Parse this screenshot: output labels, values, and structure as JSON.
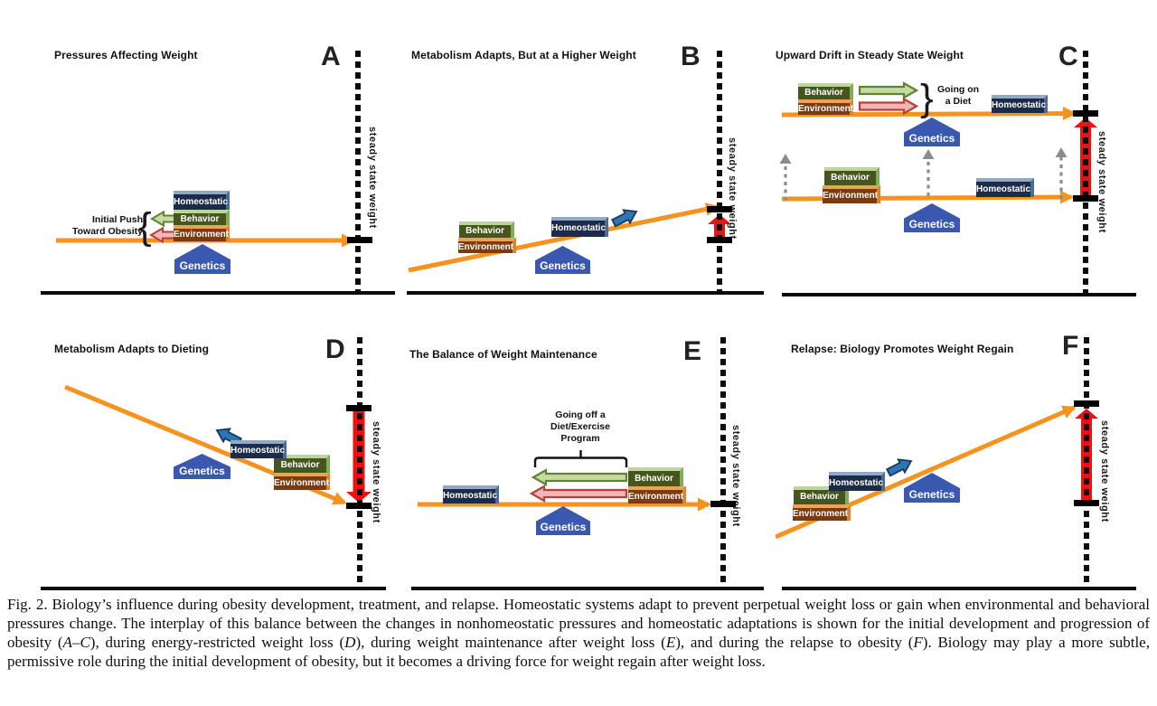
{
  "labels": {
    "steady_state": "steady state weight",
    "homeostatic": "Homeostatic",
    "behavior": "Behavior",
    "environment": "Environment",
    "genetics": "Genetics"
  },
  "panels": {
    "a": {
      "letter": "A",
      "title": "Pressures Affecting Weight",
      "brace": "{",
      "annotation": {
        "line1": "Initial Push",
        "line2": "Toward Obesity"
      }
    },
    "b": {
      "letter": "B",
      "title": "Metabolism Adapts, But at a Higher Weight"
    },
    "c": {
      "letter": "C",
      "title": "Upward Drift in Steady State Weight",
      "brace": "}",
      "annotation": {
        "line1": "Going on",
        "line2": "a Diet"
      }
    },
    "d": {
      "letter": "D",
      "title": "Metabolism Adapts to Dieting"
    },
    "e": {
      "letter": "E",
      "title": "The Balance of Weight Maintenance",
      "annotation": {
        "line1": "Going off a",
        "line2": "Diet/Exercise",
        "line3": "Program"
      }
    },
    "f": {
      "letter": "F",
      "title": "Relapse: Biology Promotes Weight Regain"
    }
  },
  "figure": {
    "caption_segments": [
      {
        "text": "Fig. 2. Biology’s influence during obesity development, treatment, and relapse. Homeostatic systems adapt to prevent perpetual weight loss or gain when environmental and behavioral pressures change. The interplay of this balance between the changes in nonhomeostatic pressures and homeostatic adaptations is shown for the initial development and progression of obesity (",
        "italic": false
      },
      {
        "text": "A",
        "italic": true
      },
      {
        "text": "–",
        "italic": false
      },
      {
        "text": "C",
        "italic": true
      },
      {
        "text": "), during energy-restricted weight loss (",
        "italic": false
      },
      {
        "text": "D",
        "italic": true
      },
      {
        "text": "), during weight maintenance after weight loss (",
        "italic": false
      },
      {
        "text": "E",
        "italic": true
      },
      {
        "text": "), and during the relapse to obesity (",
        "italic": false
      },
      {
        "text": "F",
        "italic": true
      },
      {
        "text": "). Biology may play a more subtle, permissive role during the initial development of obesity, but it becomes a driving force for weight regain after weight loss.",
        "italic": false
      }
    ]
  },
  "colors": {
    "trajectory_orange": "#F6921E",
    "steady_state_shift_red": "#EE1111",
    "homeostatic_box_navy": "#1B2B49",
    "behavior_box_green": "#45551D",
    "environment_box_brown": "#7C3A0F",
    "genetics_pentagon_blue": "#3A58B0",
    "adaptation_arrow_blue": "#2E75B6",
    "pressure_arrow_green_fill": "#C6DBA0",
    "pressure_arrow_green_stroke": "#5F8336",
    "pressure_arrow_red_fill": "#F2B5B8",
    "pressure_arrow_red_stroke": "#B5403C",
    "drift_arrow_gray": "#8C8C8C"
  }
}
